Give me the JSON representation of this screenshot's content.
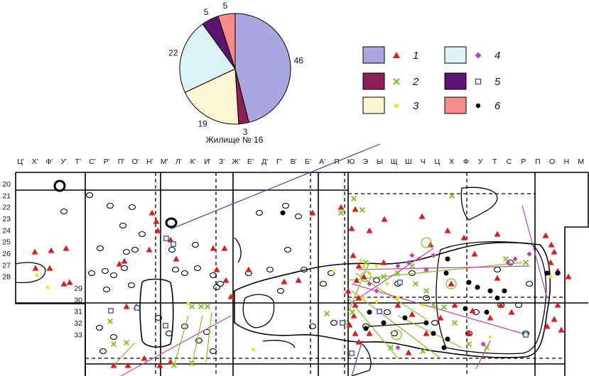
{
  "chart_data": {
    "type": "pie",
    "title": "Жилище № 16",
    "slices": [
      {
        "category": "1",
        "value": 46,
        "color": "#a9a6e0"
      },
      {
        "category": "2",
        "value": 3,
        "color": "#8c1f55"
      },
      {
        "category": "3",
        "value": 19,
        "color": "#fbf5d2"
      },
      {
        "category": "4",
        "value": 22,
        "color": "#dcf3f8"
      },
      {
        "category": "5",
        "value": 5,
        "color": "#5b1470"
      },
      {
        "category": "6",
        "value": 5,
        "color": "#fa8b8b"
      }
    ]
  },
  "legend": {
    "items": [
      {
        "label": "1",
        "swatch": "#a9a6e0",
        "marker": "triangle",
        "marker_color": "#e31a1c"
      },
      {
        "label": "2",
        "swatch": "#8c1f55",
        "marker": "cross",
        "marker_color": "#7cc41d"
      },
      {
        "label": "3",
        "swatch": "#fbf5d2",
        "marker": "dot",
        "marker_color": "#f2e51a"
      },
      {
        "label": "4",
        "swatch": "#dcf3f8",
        "marker": "diamond",
        "marker_color": "#c93fb0"
      },
      {
        "label": "5",
        "swatch": "#5b1470",
        "marker": "square",
        "marker_color": "#2b4fa8"
      },
      {
        "label": "6",
        "swatch": "#fa8b8b",
        "marker": "dot",
        "marker_color": "#000000"
      }
    ]
  },
  "grid": {
    "columns": [
      "Ц'",
      "Х'",
      "Ф'",
      "У'",
      "Т'",
      "С'",
      "Р'",
      "П'",
      "О'",
      "Н'",
      "М'",
      "Л'",
      "К'",
      "И'",
      "З'",
      "Ж'",
      "Е'",
      "Д'",
      "Г'",
      "В'",
      "Б'",
      "А'",
      "Я",
      "Ю",
      "Э",
      "Ы",
      "Щ",
      "Ш",
      "Ч",
      "Ц",
      "Х",
      "Ф",
      "У",
      "Т",
      "С",
      "Р",
      "П",
      "О",
      "Н",
      "М"
    ],
    "rows": [
      "20",
      "21",
      "22",
      "23",
      "24",
      "25",
      "26",
      "27",
      "28",
      "29",
      "30",
      "31",
      "32",
      "33"
    ]
  }
}
